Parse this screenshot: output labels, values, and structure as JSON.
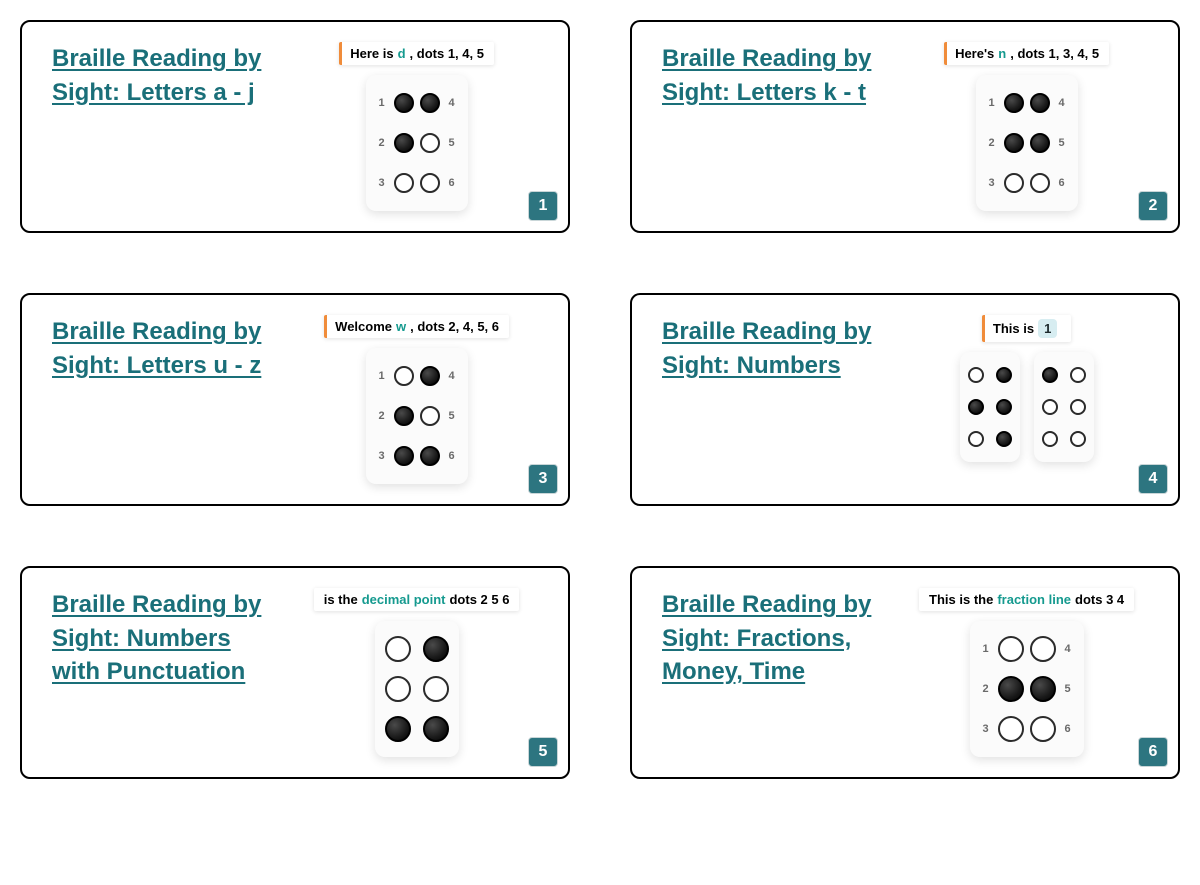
{
  "colors": {
    "link": "#1a6f79",
    "badge_bg": "#2d7580",
    "caption_highlight": "#159a8f",
    "caption_bar": "#f08c3a",
    "border": "#000000",
    "dot_fill": "#1a1a1a",
    "dot_stroke": "#2b2b2b"
  },
  "dot_sizes": {
    "small": 16,
    "medium": 20,
    "large": 26
  },
  "cards": [
    {
      "title": "Braille Reading by Sight: Letters a - j",
      "badge": "1",
      "caption": {
        "pre": "Here is ",
        "hl": "d",
        "post": ", dots 1, 4, 5",
        "bar": true,
        "style": "plain"
      },
      "cells": [
        {
          "labels": true,
          "size": "md",
          "dots": [
            true,
            true,
            false,
            true,
            false,
            false
          ]
        }
      ]
    },
    {
      "title": "Braille Reading by Sight: Letters k - t",
      "badge": "2",
      "caption": {
        "pre": "Here's ",
        "hl": "n",
        "post": ", dots 1, 3, 4, 5",
        "bar": true,
        "style": "plain"
      },
      "cells": [
        {
          "labels": true,
          "size": "md",
          "dots": [
            true,
            true,
            false,
            true,
            true,
            false
          ]
        }
      ]
    },
    {
      "title": "Braille Reading by Sight: Letters u - z",
      "badge": "3",
      "caption": {
        "pre": "Welcome ",
        "hl": "w",
        "post": ", dots 2, 4, 5, 6",
        "bar": true,
        "style": "plain"
      },
      "cells": [
        {
          "labels": true,
          "size": "md",
          "dots": [
            false,
            true,
            true,
            true,
            false,
            true
          ]
        }
      ]
    },
    {
      "title": "Braille Reading by Sight: Numbers",
      "badge": "4",
      "caption": {
        "pre": "This is ",
        "hl": "1",
        "post": "",
        "bar": true,
        "style": "box"
      },
      "cells": [
        {
          "labels": false,
          "size": "sm",
          "dots": [
            false,
            true,
            false,
            true,
            true,
            true
          ]
        },
        {
          "labels": false,
          "size": "sm",
          "dots": [
            true,
            false,
            false,
            false,
            false,
            false
          ]
        }
      ]
    },
    {
      "title": "Braille Reading by Sight: Numbers with Punctuation",
      "badge": "5",
      "caption": {
        "pre": "is the ",
        "hl": "decimal point",
        "post": " dots 2 5 6",
        "bar": false,
        "style": "plain"
      },
      "cells": [
        {
          "labels": false,
          "size": "lg",
          "dots": [
            false,
            false,
            true,
            true,
            false,
            true
          ]
        }
      ]
    },
    {
      "title": "Braille Reading by Sight: Fractions, Money, Time",
      "badge": "6",
      "caption": {
        "pre": "This is the ",
        "hl": "fraction line",
        "post": " dots 3 4",
        "bar": false,
        "style": "plain"
      },
      "cells": [
        {
          "labels": true,
          "size": "lg",
          "dots": [
            false,
            true,
            false,
            false,
            true,
            false
          ]
        }
      ]
    }
  ]
}
